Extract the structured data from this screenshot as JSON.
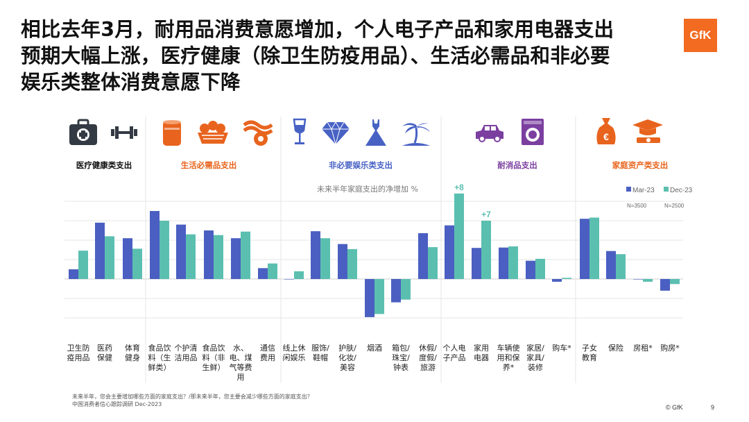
{
  "title": {
    "line1": "相比去年3月，耐用品消费意愿增加，个人电子产品和家用电器支出",
    "line2": "预期大幅上涨，医疗健康（除卫生防疫用品）、生活必需品和非必要",
    "line3": "娱乐类整体消费意愿下降"
  },
  "logo": "GfK",
  "categories": [
    {
      "label": "医疗健康类支出",
      "color": "#111111",
      "icons": [
        "medical-kit-icon",
        "dumbbell-icon"
      ]
    },
    {
      "label": "生活必需品支出",
      "color": "#e8641e",
      "icons": [
        "canned-food-icon",
        "fruit-basket-icon",
        "bacon-egg-icon"
      ]
    },
    {
      "label": "非必要娱乐类支出",
      "color": "#4862c4",
      "icons": [
        "wine-glass-icon",
        "diamond-icon",
        "dress-icon",
        "palm-tree-icon"
      ]
    },
    {
      "label": "耐消品支出",
      "color": "#7b3fa0",
      "icons": [
        "car-icon",
        "washing-machine-icon"
      ]
    },
    {
      "label": "家庭资产类支出",
      "color": "#e8641e",
      "icons": [
        "money-bag-icon",
        "graduation-cap-icon"
      ]
    }
  ],
  "footer": {
    "note1": "未来半年，您会主要增加哪些方面的家庭支出？/那未来半年，您主要会减少哪些方面的家庭支出？",
    "note2": "中国消费者信心跟踪调研 Dec-2023",
    "copyright": "© GfK",
    "page": "9"
  },
  "chart_data": {
    "type": "bar",
    "title": "未来半年家庭支出的净增加 %",
    "series": [
      {
        "name": "Mar-23",
        "sample": "N=3500",
        "color": "#4a5fc1",
        "values": [
          2.5,
          14.5,
          10.5,
          17.5,
          14,
          12.5,
          10.5,
          2.8,
          0,
          12.3,
          9,
          -9.8,
          -6,
          11.8,
          13.8,
          8,
          8.1,
          4.7,
          -0.7,
          15.5,
          7.2,
          0,
          -3
        ]
      },
      {
        "name": "Dec-23",
        "sample": "N=2500",
        "color": "#5bbfb0",
        "values": [
          7.3,
          11,
          7.8,
          15,
          11.5,
          11.3,
          12.2,
          4,
          2,
          10.5,
          7.7,
          -9,
          -5.3,
          8.2,
          22,
          15,
          8.4,
          5.2,
          0.3,
          15.8,
          6.4,
          -0.7,
          -1.3
        ]
      }
    ],
    "categories": [
      [
        "卫生防",
        "疫用品"
      ],
      [
        "医药",
        "保健"
      ],
      [
        "体育",
        "健身"
      ],
      [
        "食品饮",
        "料（生",
        "鲜类）"
      ],
      [
        "个护清",
        "洁用品"
      ],
      [
        "食品饮",
        "料（非",
        "生鲜）"
      ],
      [
        "水、",
        "电、煤",
        "气等费",
        "用"
      ],
      [
        "通信",
        "费用"
      ],
      [
        "线上休",
        "闲娱乐"
      ],
      [
        "服饰/",
        "鞋帽"
      ],
      [
        "护肤/",
        "化妆/",
        "美容"
      ],
      [
        "烟酒"
      ],
      [
        "箱包/",
        "珠宝/",
        "钟表"
      ],
      [
        "休假/",
        "度假/",
        "旅游"
      ],
      [
        "个人电",
        "子产品"
      ],
      [
        "家用",
        "电器"
      ],
      [
        "车辆使",
        "用和保",
        "养*"
      ],
      [
        "家居/",
        "家具/",
        "装修"
      ],
      [
        "购车*"
      ],
      [
        "子女",
        "教育"
      ],
      [
        "保险"
      ],
      [
        "房租*"
      ],
      [
        "购房*"
      ]
    ],
    "annotations": [
      {
        "index": 14,
        "text": "+8"
      },
      {
        "index": 15,
        "text": "+7"
      }
    ],
    "grid": true,
    "legend_position": "top-right"
  }
}
